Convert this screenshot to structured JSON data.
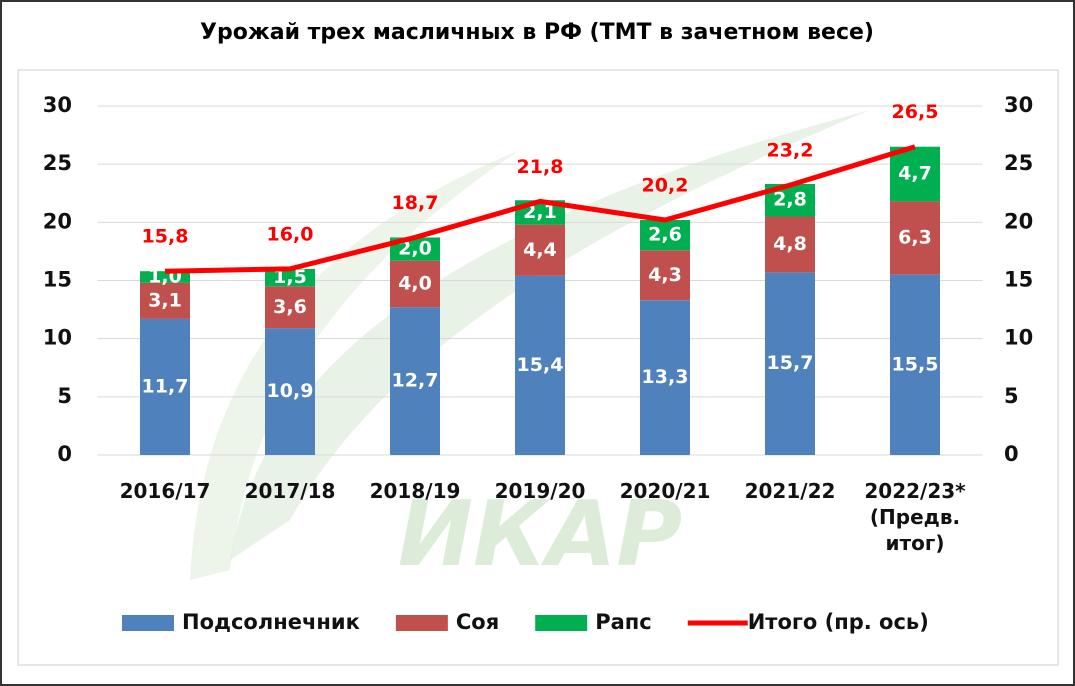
{
  "chart_data": {
    "type": "bar",
    "stacked": true,
    "title": "Урожай трех масличных в РФ (ТМТ в зачетном весе)",
    "watermark": "ИКАР",
    "categories": [
      "2016/17",
      "2017/18",
      "2018/19",
      "2019/20",
      "2020/21",
      "2021/22",
      "2022/23* (Предв. итог)"
    ],
    "series": [
      {
        "name": "Подсолнечник",
        "color": "#4f81bd",
        "type": "bar",
        "values": [
          11.7,
          10.9,
          12.7,
          15.4,
          13.3,
          15.7,
          15.5
        ],
        "value_labels": [
          "11,7",
          "10,9",
          "12,7",
          "15,4",
          "13,3",
          "15,7",
          "15,5"
        ]
      },
      {
        "name": "Соя",
        "color": "#c0504d",
        "type": "bar",
        "values": [
          3.1,
          3.6,
          4.0,
          4.4,
          4.3,
          4.8,
          6.3
        ],
        "value_labels": [
          "3,1",
          "3,6",
          "4,0",
          "4,4",
          "4,3",
          "4,8",
          "6,3"
        ]
      },
      {
        "name": "Рапс",
        "color": "#00b050",
        "type": "bar",
        "values": [
          1.0,
          1.5,
          2.0,
          2.1,
          2.6,
          2.8,
          4.7
        ],
        "value_labels": [
          "1,0",
          "1,5",
          "2,0",
          "2,1",
          "2,6",
          "2,8",
          "4,7"
        ]
      },
      {
        "name": "Итого (пр. ось)",
        "color": "#ff0000",
        "type": "line",
        "axis": "y2",
        "values": [
          15.8,
          16.0,
          18.7,
          21.8,
          20.2,
          23.2,
          26.5
        ],
        "value_labels": [
          "15,8",
          "16,0",
          "18,7",
          "21,8",
          "20,2",
          "23,2",
          "26,5"
        ]
      }
    ],
    "ylim": [
      0,
      30
    ],
    "yticks": [
      0,
      5,
      10,
      15,
      20,
      25,
      30
    ],
    "y2lim": [
      0,
      30
    ],
    "y2ticks": [
      0,
      5,
      10,
      15,
      20,
      25,
      30
    ],
    "grid": true,
    "legend": "bottom"
  }
}
